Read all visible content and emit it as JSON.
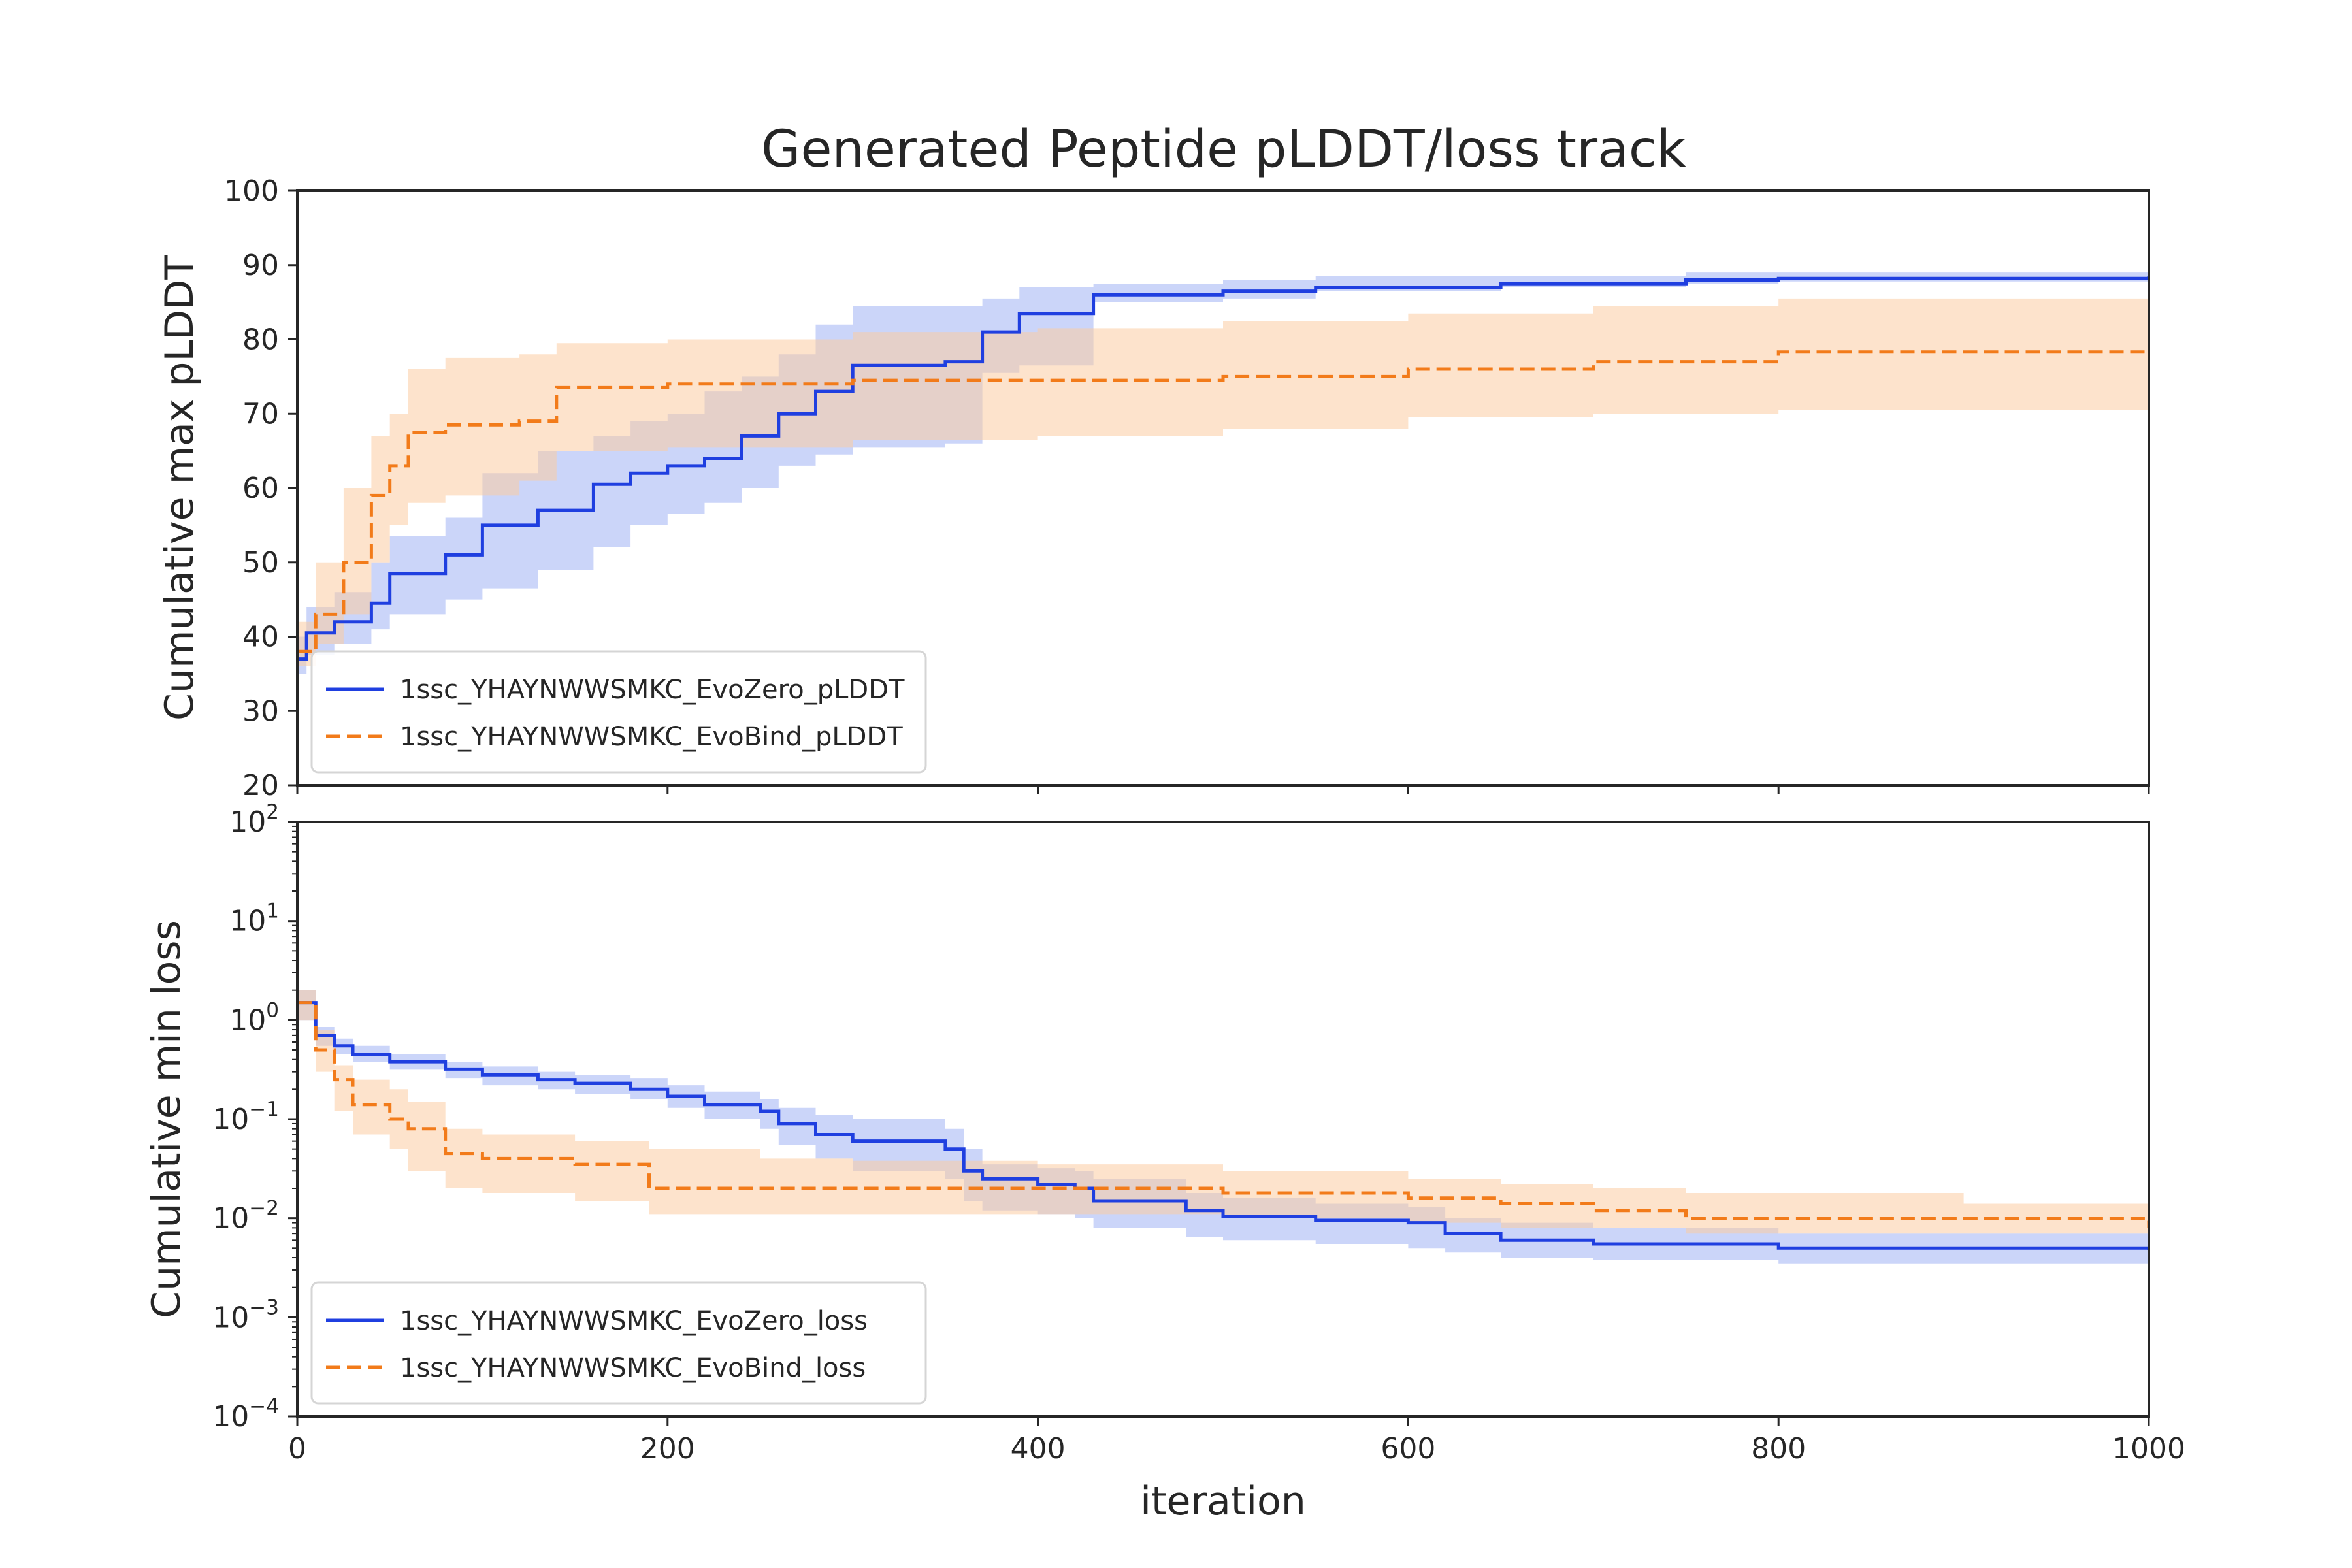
{
  "title": "Generated Peptide pLDDT/loss track",
  "colors": {
    "evozero": "#1f3fe0",
    "evozero_band": "#a9b9f5",
    "evobind": "#f27b1a",
    "evobind_band": "#fccca3",
    "axis": "#262626"
  },
  "chart_data": [
    {
      "type": "line",
      "title": "Generated Peptide pLDDT/loss track",
      "xlabel": "",
      "ylabel": "Cumulative max pLDDT",
      "xlim": [
        0,
        1000
      ],
      "ylim": [
        20,
        100
      ],
      "xticks": [
        0,
        200,
        400,
        600,
        800,
        1000
      ],
      "yticks": [
        20,
        30,
        40,
        50,
        60,
        70,
        80,
        90,
        100
      ],
      "legend_position": "lower-left",
      "series": [
        {
          "name": "1ssc_YHAYNWWSMKC_EvoZero_pLDDT",
          "color": "#1f3fe0",
          "style": "solid",
          "x": [
            0,
            5,
            20,
            40,
            50,
            80,
            100,
            130,
            160,
            180,
            200,
            220,
            240,
            260,
            280,
            300,
            350,
            370,
            390,
            430,
            500,
            550,
            650,
            750,
            800,
            1000
          ],
          "y": [
            37,
            40.5,
            42,
            44.5,
            48.5,
            51,
            55,
            57,
            60.5,
            62,
            63,
            64,
            67,
            70,
            73,
            76.5,
            77,
            81,
            83.5,
            86,
            86.5,
            87,
            87.5,
            88,
            88.2,
            88.5
          ],
          "band_low": [
            35,
            37.5,
            39,
            41,
            43,
            45,
            46.5,
            49,
            52,
            55,
            56.5,
            58,
            60,
            63,
            64.5,
            65.5,
            66,
            75.5,
            76.5,
            85,
            85.5,
            86.5,
            87,
            87.5,
            87.8,
            88
          ],
          "band_high": [
            40,
            44,
            46,
            50,
            53.5,
            56,
            62,
            65,
            67,
            69,
            70,
            73,
            75,
            78,
            82,
            84.5,
            84.5,
            85.5,
            87,
            87.5,
            88,
            88.5,
            88.5,
            89,
            89,
            89.5
          ]
        },
        {
          "name": "1ssc_YHAYNWWSMKC_EvoBind_pLDDT",
          "color": "#f27b1a",
          "style": "dashed",
          "x": [
            0,
            10,
            25,
            40,
            50,
            60,
            80,
            120,
            140,
            200,
            300,
            400,
            500,
            600,
            700,
            800,
            1000
          ],
          "y": [
            38,
            43,
            50,
            59,
            63,
            67.5,
            68.5,
            69,
            73.5,
            74,
            74.5,
            74.5,
            75,
            76,
            77,
            78.3,
            78.3
          ],
          "band_low": [
            36,
            39,
            43,
            50,
            55,
            58,
            59,
            61,
            65,
            65.5,
            66.5,
            67,
            68,
            69.5,
            70,
            70.5,
            71
          ],
          "band_high": [
            42,
            50,
            60,
            67,
            70,
            76,
            77.5,
            78,
            79.5,
            80,
            81,
            81.5,
            82.5,
            83.5,
            84.5,
            85.5,
            86
          ]
        }
      ]
    },
    {
      "type": "line",
      "title": "",
      "xlabel": "iteration",
      "ylabel": "Cumulative min loss",
      "xscale": "linear",
      "yscale": "log",
      "xlim": [
        0,
        1000
      ],
      "ylim": [
        0.0001,
        100
      ],
      "xticks": [
        0,
        200,
        400,
        600,
        800,
        1000
      ],
      "ytick_labels": [
        {
          "value": 0.0001,
          "base": "10",
          "exp": "−4"
        },
        {
          "value": 0.001,
          "base": "10",
          "exp": "−3"
        },
        {
          "value": 0.01,
          "base": "10",
          "exp": "−2"
        },
        {
          "value": 0.1,
          "base": "10",
          "exp": "−1"
        },
        {
          "value": 1,
          "base": "10",
          "exp": "0"
        },
        {
          "value": 10,
          "base": "10",
          "exp": "1"
        },
        {
          "value": 100,
          "base": "10",
          "exp": "2"
        }
      ],
      "legend_position": "lower-left",
      "series": [
        {
          "name": "1ssc_YHAYNWWSMKC_EvoZero_loss",
          "color": "#1f3fe0",
          "style": "solid",
          "x": [
            0,
            10,
            20,
            30,
            50,
            80,
            100,
            130,
            150,
            180,
            200,
            220,
            250,
            260,
            280,
            300,
            350,
            360,
            370,
            400,
            420,
            430,
            480,
            500,
            550,
            600,
            620,
            650,
            700,
            800,
            1000
          ],
          "y": [
            1.5,
            0.7,
            0.55,
            0.45,
            0.38,
            0.32,
            0.28,
            0.25,
            0.23,
            0.2,
            0.17,
            0.14,
            0.12,
            0.09,
            0.07,
            0.06,
            0.05,
            0.03,
            0.025,
            0.022,
            0.02,
            0.015,
            0.012,
            0.0105,
            0.0095,
            0.009,
            0.007,
            0.006,
            0.0055,
            0.005,
            0.0048
          ],
          "band_low": [
            1.0,
            0.55,
            0.45,
            0.38,
            0.32,
            0.26,
            0.22,
            0.2,
            0.18,
            0.16,
            0.13,
            0.1,
            0.08,
            0.055,
            0.04,
            0.03,
            0.025,
            0.015,
            0.012,
            0.011,
            0.01,
            0.008,
            0.0065,
            0.006,
            0.0055,
            0.005,
            0.0045,
            0.004,
            0.0038,
            0.0035,
            0.0035
          ],
          "band_high": [
            2.0,
            0.85,
            0.65,
            0.55,
            0.45,
            0.38,
            0.34,
            0.3,
            0.28,
            0.26,
            0.22,
            0.19,
            0.16,
            0.13,
            0.11,
            0.1,
            0.08,
            0.05,
            0.035,
            0.032,
            0.03,
            0.025,
            0.018,
            0.016,
            0.014,
            0.013,
            0.01,
            0.009,
            0.008,
            0.007,
            0.006
          ]
        },
        {
          "name": "1ssc_YHAYNWWSMKC_EvoBind_loss",
          "color": "#f27b1a",
          "style": "dashed",
          "x": [
            0,
            10,
            20,
            30,
            50,
            60,
            80,
            100,
            150,
            190,
            250,
            300,
            400,
            500,
            600,
            650,
            700,
            750,
            900,
            1000
          ],
          "y": [
            1.5,
            0.5,
            0.25,
            0.14,
            0.1,
            0.08,
            0.045,
            0.04,
            0.035,
            0.02,
            0.02,
            0.02,
            0.02,
            0.018,
            0.016,
            0.014,
            0.012,
            0.01,
            0.01,
            0.008
          ],
          "band_low": [
            1.0,
            0.3,
            0.12,
            0.07,
            0.05,
            0.03,
            0.02,
            0.018,
            0.015,
            0.011,
            0.011,
            0.011,
            0.011,
            0.01,
            0.009,
            0.008,
            0.008,
            0.007,
            0.007,
            0.006
          ],
          "band_high": [
            2.0,
            0.8,
            0.35,
            0.25,
            0.2,
            0.15,
            0.08,
            0.07,
            0.06,
            0.05,
            0.04,
            0.038,
            0.035,
            0.03,
            0.025,
            0.022,
            0.02,
            0.018,
            0.014,
            0.011
          ]
        }
      ]
    }
  ]
}
